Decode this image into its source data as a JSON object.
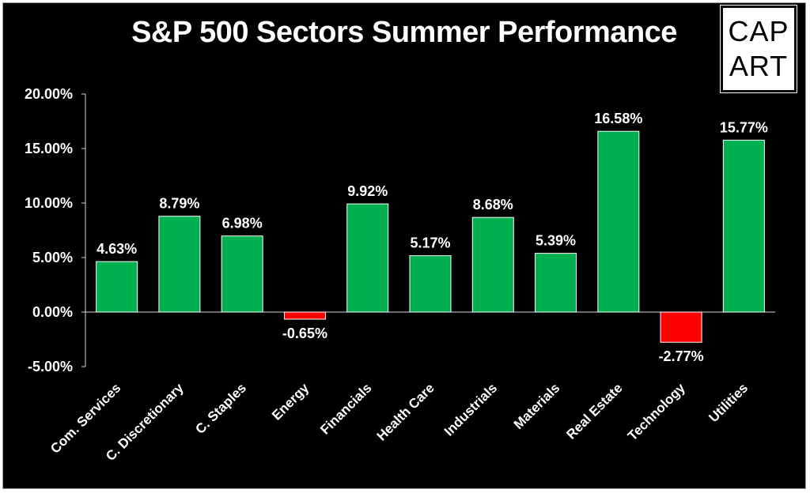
{
  "logo": {
    "line1": "CAP",
    "line2": "ART"
  },
  "colors": {
    "positive": "#00b050",
    "negative": "#ff0000",
    "background": "#000000",
    "text": "#ffffff"
  },
  "chart_data": {
    "type": "bar",
    "title": "S&P 500 Sectors Summer Performance",
    "xlabel": "",
    "ylabel": "",
    "categories": [
      "Com. Services",
      "C. Discretionary",
      "C. Staples",
      "Energy",
      "Financials",
      "Health Care",
      "Industrials",
      "Materials",
      "Real Estate",
      "Technology",
      "Utilities"
    ],
    "values": [
      4.63,
      8.79,
      6.98,
      -0.65,
      9.92,
      5.17,
      8.68,
      5.39,
      16.58,
      -2.77,
      15.77
    ],
    "data_labels": [
      "4.63%",
      "8.79%",
      "6.98%",
      "-0.65%",
      "9.92%",
      "5.17%",
      "8.68%",
      "5.39%",
      "16.58%",
      "-2.77%",
      "15.77%"
    ],
    "ylim": [
      -5,
      20
    ],
    "yticks": [
      20,
      15,
      10,
      5,
      0,
      -5
    ],
    "ytick_labels": [
      "20.00%",
      "15.00%",
      "10.00%",
      "5.00%",
      "0.00%",
      "-5.00%"
    ],
    "grid": false,
    "legend": "none"
  }
}
